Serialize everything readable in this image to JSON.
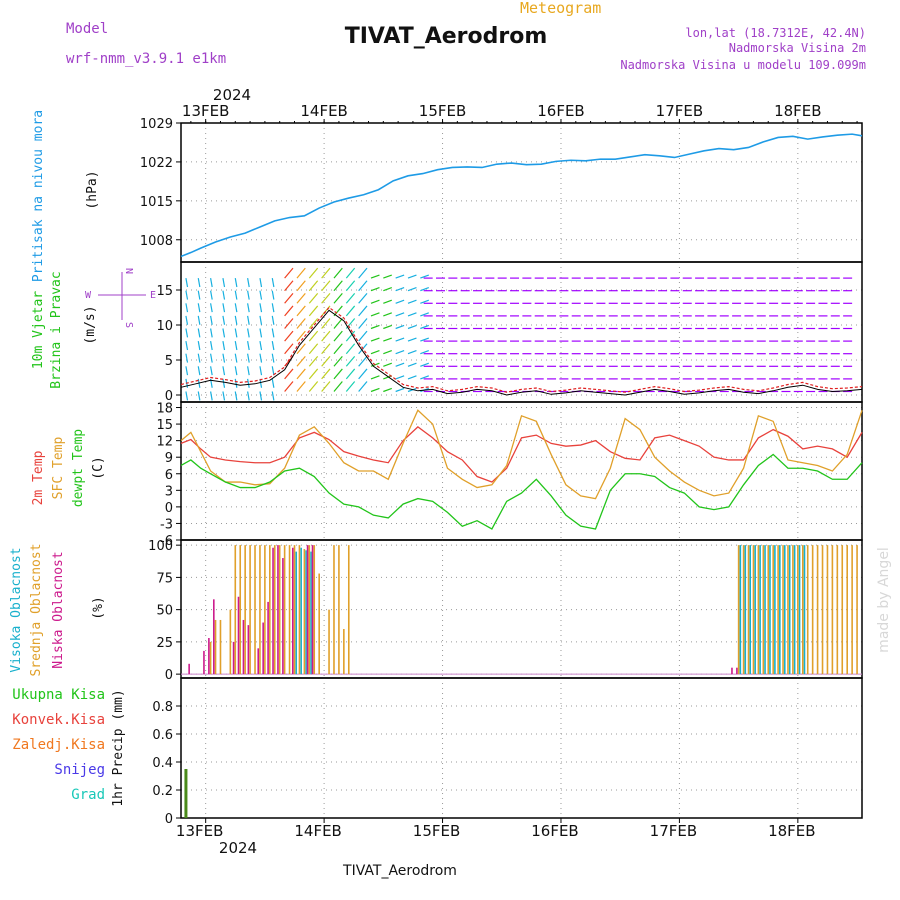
{
  "header": {
    "model_label": "Model",
    "model_value": "wrf-nmm_v3.9.1 e1km",
    "product": "Meteogram",
    "station": "TIVAT_Aerodrom",
    "coords": "lon,lat (18.7312E, 42.4N)",
    "elev": "Nadmorska Visina 2m",
    "model_elev": "Nadmorska Visina u modelu 109.099m",
    "watermark": "made by Angel",
    "footer_station": "TIVAT_Aerodrom"
  },
  "colors": {
    "pressure": "#1e9be6",
    "t2m": "#e8423c",
    "sfc": "#e0a02a",
    "dewpt": "#22c41a",
    "high_cloud": "#18b0cc",
    "mid_cloud": "#e0a02a",
    "low_cloud": "#cc1a8c",
    "total_precip": "#4a8a1a",
    "conv_precip": "#e8423c",
    "frozen_precip": "#f07820",
    "snow": "#4a3ae8",
    "hail": "#18c8b8",
    "wind_legend": "#a040c8",
    "header_purple": "#a040c8",
    "header_orange": "#e8a820"
  },
  "chart_data": [
    {
      "type": "line",
      "title": "Pritisak na nivou mora",
      "ylabel": "(hPa)",
      "ylim": [
        1004,
        1029
      ],
      "yticks": [
        1008,
        1015,
        1022,
        1029
      ],
      "x_start_label": "2024",
      "x_dates": [
        "13FEB",
        "14FEB",
        "15FEB",
        "16FEB",
        "17FEB",
        "18FEB"
      ],
      "x_hours": [
        0,
        24,
        48,
        72,
        96,
        120
      ],
      "xlim_hours": [
        -5,
        133
      ],
      "grid": true,
      "series": [
        {
          "x": [
            -5,
            -3,
            -1,
            2,
            5,
            8,
            11,
            14,
            17,
            20,
            23,
            26,
            29,
            32,
            35,
            38,
            41,
            44,
            47,
            50,
            53,
            56,
            59,
            62,
            65,
            68,
            71,
            74,
            77,
            80,
            83,
            86,
            89,
            92,
            95,
            98,
            101,
            104,
            107,
            110,
            113,
            116,
            119,
            122,
            125,
            128,
            131,
            133
          ],
          "values": [
            1005.0,
            1005.7,
            1006.5,
            1007.6,
            1008.5,
            1009.2,
            1010.3,
            1011.4,
            1012.0,
            1012.3,
            1013.7,
            1014.8,
            1015.5,
            1016.1,
            1017.0,
            1018.6,
            1019.5,
            1019.9,
            1020.6,
            1021.0,
            1021.1,
            1021.0,
            1021.6,
            1021.8,
            1021.5,
            1021.6,
            1022.1,
            1022.3,
            1022.2,
            1022.5,
            1022.5,
            1022.9,
            1023.3,
            1023.1,
            1022.8,
            1023.4,
            1024.0,
            1024.4,
            1024.2,
            1024.6,
            1025.6,
            1026.4,
            1026.6,
            1026.1,
            1026.5,
            1026.8,
            1027.0,
            1026.7
          ]
        }
      ]
    },
    {
      "type": "scatter",
      "title": "10m Vjetar Brzina i Pravac",
      "ylabel": "(m/s)",
      "ylim": [
        -1,
        19
      ],
      "yticks": [
        0,
        5,
        10,
        15
      ],
      "xlim_hours": [
        -5,
        133
      ],
      "grid": true,
      "legend": [
        "W",
        "E",
        "N",
        "S"
      ],
      "series": [
        {
          "name": "10m Vjetar",
          "x": [
            -5,
            -2,
            1,
            4,
            7,
            10,
            13,
            16,
            19,
            22,
            25,
            28,
            31,
            34,
            37,
            40,
            43,
            46,
            49,
            52,
            55,
            58,
            61,
            64,
            67,
            70,
            73,
            76,
            79,
            82,
            85,
            88,
            91,
            94,
            97,
            100,
            103,
            106,
            109,
            112,
            115,
            118,
            121,
            124,
            127,
            130,
            133
          ],
          "values": [
            1.5,
            2.0,
            2.5,
            2.2,
            1.8,
            2.0,
            2.5,
            4.0,
            7.5,
            10.0,
            12.5,
            11.0,
            7.5,
            4.5,
            3.0,
            1.5,
            1.0,
            1.2,
            0.6,
            0.8,
            1.2,
            1.0,
            0.4,
            0.8,
            1.0,
            0.5,
            0.7,
            1.0,
            0.8,
            0.6,
            0.4,
            0.8,
            1.2,
            0.9,
            0.5,
            0.7,
            1.0,
            1.2,
            0.8,
            0.6,
            1.0,
            1.5,
            1.8,
            1.2,
            0.9,
            1.0,
            1.2
          ]
        }
      ]
    },
    {
      "type": "line",
      "title": "2m Temp / SFC Temp / dewpt Temp",
      "ylabel": "(C)",
      "ylim": [
        -6,
        19
      ],
      "yticks": [
        -6,
        -3,
        0,
        3,
        6,
        9,
        12,
        15,
        18
      ],
      "xlim_hours": [
        -5,
        133
      ],
      "grid": true,
      "series": [
        {
          "name": "2m Temp",
          "x": [
            -5,
            -3,
            -1,
            1,
            4,
            7,
            10,
            13,
            16,
            19,
            22,
            25,
            28,
            31,
            34,
            37,
            40,
            43,
            46,
            49,
            52,
            55,
            58,
            61,
            64,
            67,
            70,
            73,
            76,
            79,
            82,
            85,
            88,
            91,
            94,
            97,
            100,
            103,
            106,
            109,
            112,
            115,
            118,
            121,
            124,
            127,
            130,
            133
          ],
          "values": [
            11.5,
            12.2,
            10.5,
            9.0,
            8.5,
            8.2,
            8.0,
            8.0,
            9.0,
            12.5,
            13.5,
            12.2,
            10.0,
            9.2,
            8.5,
            8.0,
            12.0,
            14.5,
            12.5,
            10.0,
            8.5,
            5.5,
            4.5,
            7.0,
            12.5,
            13.0,
            11.5,
            11.0,
            11.2,
            12.0,
            10.0,
            8.8,
            8.5,
            12.5,
            13.0,
            12.0,
            11.0,
            9.0,
            8.5,
            8.5,
            12.5,
            14.0,
            12.8,
            10.5,
            11.0,
            10.5,
            9.0,
            13.5
          ]
        },
        {
          "name": "SFC Temp",
          "x": [
            -5,
            -3,
            -1,
            1,
            4,
            7,
            10,
            13,
            16,
            19,
            22,
            25,
            28,
            31,
            34,
            37,
            40,
            43,
            46,
            49,
            52,
            55,
            58,
            61,
            64,
            67,
            70,
            73,
            76,
            79,
            82,
            85,
            88,
            91,
            94,
            97,
            100,
            103,
            106,
            109,
            112,
            115,
            118,
            121,
            124,
            127,
            130,
            133
          ],
          "values": [
            12.0,
            13.5,
            10.0,
            6.5,
            4.5,
            4.5,
            4.0,
            4.2,
            7.0,
            13.0,
            14.5,
            11.5,
            8.0,
            6.5,
            6.5,
            5.0,
            11.5,
            17.5,
            15.0,
            7.0,
            5.0,
            3.5,
            4.0,
            7.5,
            16.5,
            15.5,
            9.5,
            4.0,
            2.0,
            1.5,
            7.0,
            16.0,
            14.0,
            9.0,
            6.5,
            4.5,
            3.0,
            2.0,
            2.5,
            7.0,
            16.5,
            15.5,
            8.5,
            8.0,
            7.5,
            6.5,
            9.5,
            17.5
          ]
        },
        {
          "name": "dewpt Temp",
          "x": [
            -5,
            -3,
            -1,
            1,
            4,
            7,
            10,
            13,
            16,
            19,
            22,
            25,
            28,
            31,
            34,
            37,
            40,
            43,
            46,
            49,
            52,
            55,
            58,
            61,
            64,
            67,
            70,
            73,
            76,
            79,
            82,
            85,
            88,
            91,
            94,
            97,
            100,
            103,
            106,
            109,
            112,
            115,
            118,
            121,
            124,
            127,
            130,
            133
          ],
          "values": [
            7.5,
            8.5,
            7.0,
            6.0,
            4.5,
            3.5,
            3.5,
            4.5,
            6.5,
            7.0,
            5.5,
            2.5,
            0.5,
            0.0,
            -1.5,
            -2.0,
            0.5,
            1.5,
            1.0,
            -1.0,
            -3.5,
            -2.5,
            -4.0,
            1.0,
            2.5,
            5.0,
            2.0,
            -1.5,
            -3.5,
            -4.0,
            3.0,
            6.0,
            6.0,
            5.5,
            3.5,
            2.5,
            0.0,
            -0.5,
            0.0,
            4.0,
            7.5,
            9.5,
            7.0,
            7.0,
            6.5,
            5.0,
            5.0,
            8.0
          ]
        }
      ]
    },
    {
      "type": "bar",
      "title": "Visoka / Srednja / Niska Oblacnost",
      "ylabel": "(%)",
      "ylim": [
        0,
        100
      ],
      "yticks": [
        0,
        25,
        50,
        75,
        100
      ],
      "xlim_hours": [
        -5,
        133
      ],
      "grid": true,
      "series": [
        {
          "name": "Visoka Oblacnost",
          "x": [
            18,
            19,
            20,
            21,
            108,
            109,
            110,
            111,
            112,
            113,
            114,
            115,
            116,
            117,
            118,
            119,
            120,
            121
          ],
          "values": [
            95,
            98,
            96,
            95,
            100,
            100,
            100,
            100,
            100,
            100,
            100,
            100,
            100,
            100,
            100,
            100,
            100,
            100
          ]
        },
        {
          "name": "Srednja Oblacnost",
          "x": [
            1,
            2,
            3,
            5,
            6,
            7,
            8,
            9,
            10,
            11,
            12,
            13,
            14,
            15,
            16,
            17,
            18,
            19,
            20,
            21,
            22,
            23,
            25,
            26,
            27,
            28,
            29,
            108,
            109,
            110,
            111,
            112,
            113,
            114,
            115,
            116,
            117,
            118,
            119,
            120,
            121,
            122,
            123,
            124,
            125,
            126,
            127,
            128,
            129,
            130,
            131,
            132
          ],
          "values": [
            25,
            42,
            42,
            50,
            100,
            100,
            100,
            100,
            100,
            100,
            100,
            100,
            100,
            100,
            100,
            100,
            100,
            100,
            97,
            100,
            100,
            78,
            50,
            100,
            100,
            35,
            100,
            100,
            100,
            100,
            100,
            100,
            100,
            100,
            100,
            100,
            100,
            100,
            100,
            100,
            100,
            100,
            100,
            100,
            100,
            100,
            100,
            100,
            100,
            100,
            100,
            100
          ]
        },
        {
          "name": "Niska Oblacnost",
          "x": [
            -3,
            0,
            1,
            2,
            6,
            7,
            8,
            9,
            11,
            12,
            13,
            14,
            15,
            16,
            18,
            21,
            22,
            107,
            108
          ],
          "values": [
            8,
            18,
            28,
            58,
            25,
            60,
            42,
            38,
            20,
            40,
            56,
            98,
            100,
            90,
            98,
            100,
            100,
            5,
            5
          ]
        }
      ]
    },
    {
      "type": "bar",
      "title": "1hr Precip",
      "ylabel": "1hr Precip (mm)",
      "ylim": [
        0,
        1
      ],
      "yticks": [
        0,
        0.2,
        0.4,
        0.6,
        0.8
      ],
      "xlim_hours": [
        -5,
        133
      ],
      "grid": true,
      "legend": [
        "Ukupna Kisa",
        "Konvek.Kisa",
        "Zaledj.Kisa",
        "Snijeg",
        "Grad"
      ],
      "series": [
        {
          "name": "Ukupna Kisa",
          "x": [
            -4
          ],
          "values": [
            0.35
          ]
        }
      ]
    }
  ]
}
